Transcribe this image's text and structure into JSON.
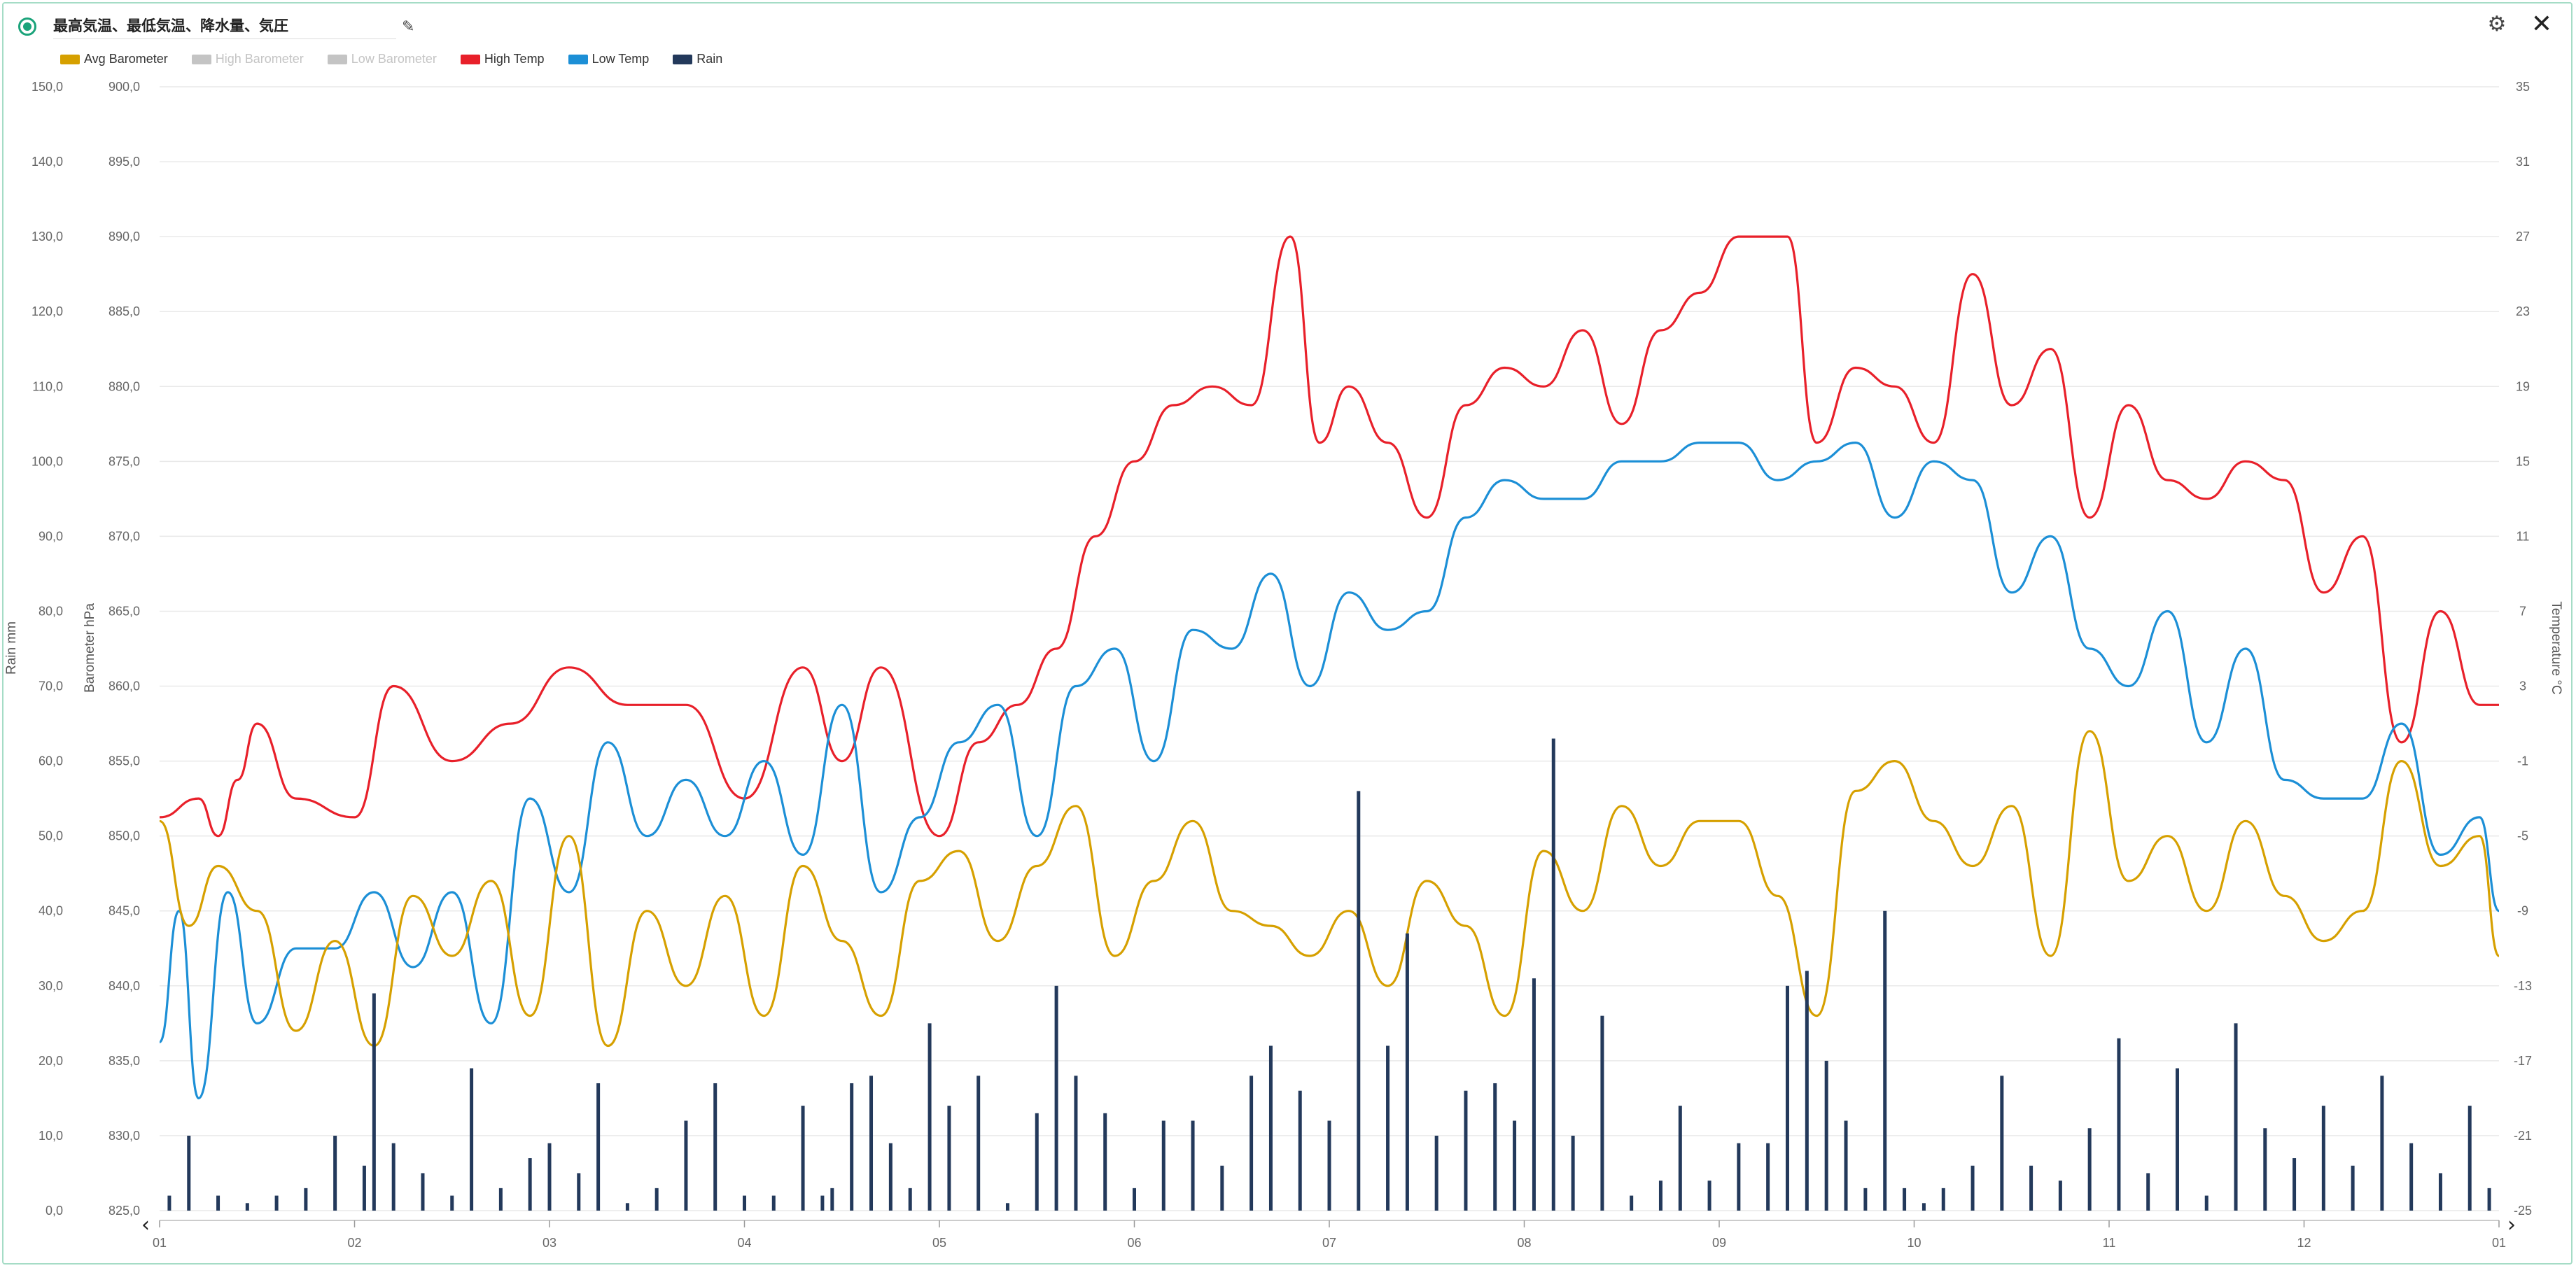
{
  "header": {
    "title": "最高気温、最低気温、降水量、気圧",
    "pencil_icon": "pencil-icon",
    "gear_icon": "gear-icon",
    "close_icon": "close-icon"
  },
  "chart_data": {
    "type": "line",
    "legend": [
      {
        "name": "Avg Barometer",
        "color": "#d6a000",
        "enabled": true
      },
      {
        "name": "High Barometer",
        "color": "#c4c4c4",
        "enabled": false
      },
      {
        "name": "Low Barometer",
        "color": "#c4c4c4",
        "enabled": false
      },
      {
        "name": "High Temp",
        "color": "#e8202a",
        "enabled": true
      },
      {
        "name": "Low Temp",
        "color": "#1c8fd6",
        "enabled": true
      },
      {
        "name": "Rain",
        "color": "#23395b",
        "enabled": true
      }
    ],
    "x_ticks": [
      "01",
      "02",
      "03",
      "04",
      "05",
      "06",
      "07",
      "08",
      "09",
      "10",
      "11",
      "12",
      "01"
    ],
    "axes": {
      "rain": {
        "label": "Rain mm",
        "min": 0,
        "max": 150,
        "ticks": [
          "0,0",
          "10,0",
          "20,0",
          "30,0",
          "40,0",
          "50,0",
          "60,0",
          "70,0",
          "80,0",
          "90,0",
          "100,0",
          "110,0",
          "120,0",
          "130,0",
          "140,0",
          "150,0"
        ]
      },
      "barometer": {
        "label": "Barometer hPa",
        "min": 825,
        "max": 900,
        "ticks": [
          "825,0",
          "830,0",
          "835,0",
          "840,0",
          "845,0",
          "850,0",
          "855,0",
          "860,0",
          "865,0",
          "870,0",
          "875,0",
          "880,0",
          "885,0",
          "890,0",
          "895,0",
          "900,0"
        ]
      },
      "temperature": {
        "label": "Temperature °C",
        "min": -25,
        "max": 35,
        "ticks": [
          "-25",
          "-21",
          "-17",
          "-13",
          "-9",
          "-5",
          "-1",
          "3",
          "7",
          "11",
          "15",
          "19",
          "23",
          "27",
          "31",
          "35"
        ]
      }
    },
    "series": [
      {
        "name": "High Temp",
        "axis": "temperature",
        "color": "#e8202a",
        "x": [
          0,
          0.2,
          0.3,
          0.4,
          0.5,
          0.7,
          1.0,
          1.2,
          1.5,
          1.8,
          2.1,
          2.4,
          2.7,
          3.0,
          3.3,
          3.5,
          3.7,
          4.0,
          4.2,
          4.4,
          4.6,
          4.8,
          5.0,
          5.2,
          5.4,
          5.6,
          5.8,
          5.95,
          6.1,
          6.3,
          6.5,
          6.7,
          6.9,
          7.1,
          7.3,
          7.5,
          7.7,
          7.9,
          8.1,
          8.2,
          8.35,
          8.5,
          8.7,
          8.9,
          9.1,
          9.3,
          9.5,
          9.7,
          9.9,
          10.1,
          10.3,
          10.5,
          10.7,
          10.9,
          11.1,
          11.3,
          11.5,
          11.7,
          11.9,
          12.0
        ],
        "y": [
          -4,
          -3,
          -5,
          -2,
          1,
          -3,
          -4,
          3,
          -1,
          1,
          4,
          2,
          2,
          -3,
          4,
          -1,
          4,
          -5,
          0,
          2,
          5,
          11,
          15,
          18,
          19,
          18,
          27,
          16,
          19,
          16,
          12,
          18,
          20,
          19,
          22,
          17,
          22,
          24,
          27,
          27,
          27,
          16,
          20,
          19,
          16,
          25,
          18,
          21,
          12,
          18,
          14,
          13,
          15,
          14,
          8,
          11,
          0,
          7,
          2,
          2
        ]
      },
      {
        "name": "Low Temp",
        "axis": "temperature",
        "color": "#1c8fd6",
        "x": [
          0,
          0.1,
          0.2,
          0.35,
          0.5,
          0.7,
          0.9,
          1.1,
          1.3,
          1.5,
          1.7,
          1.9,
          2.1,
          2.3,
          2.5,
          2.7,
          2.9,
          3.1,
          3.3,
          3.5,
          3.7,
          3.9,
          4.1,
          4.3,
          4.5,
          4.7,
          4.9,
          5.1,
          5.3,
          5.5,
          5.7,
          5.9,
          6.1,
          6.3,
          6.5,
          6.7,
          6.9,
          7.1,
          7.3,
          7.5,
          7.7,
          7.9,
          8.1,
          8.3,
          8.5,
          8.7,
          8.9,
          9.1,
          9.3,
          9.5,
          9.7,
          9.9,
          10.1,
          10.3,
          10.5,
          10.7,
          10.9,
          11.1,
          11.3,
          11.5,
          11.7,
          11.9,
          12.0
        ],
        "y": [
          -16,
          -9,
          -19,
          -8,
          -15,
          -11,
          -11,
          -8,
          -12,
          -8,
          -15,
          -3,
          -8,
          0,
          -5,
          -2,
          -5,
          -1,
          -6,
          2,
          -8,
          -4,
          0,
          2,
          -5,
          3,
          5,
          -1,
          6,
          5,
          9,
          3,
          8,
          6,
          7,
          12,
          14,
          13,
          13,
          15,
          15,
          16,
          16,
          14,
          15,
          16,
          12,
          15,
          14,
          8,
          11,
          5,
          3,
          7,
          0,
          5,
          -2,
          -3,
          -3,
          1,
          -6,
          -4,
          -9
        ]
      },
      {
        "name": "Avg Barometer",
        "axis": "barometer",
        "color": "#d6a000",
        "x": [
          0,
          0.15,
          0.3,
          0.5,
          0.7,
          0.9,
          1.1,
          1.3,
          1.5,
          1.7,
          1.9,
          2.1,
          2.3,
          2.5,
          2.7,
          2.9,
          3.1,
          3.3,
          3.5,
          3.7,
          3.9,
          4.1,
          4.3,
          4.5,
          4.7,
          4.9,
          5.1,
          5.3,
          5.5,
          5.7,
          5.9,
          6.1,
          6.3,
          6.5,
          6.7,
          6.9,
          7.1,
          7.3,
          7.5,
          7.7,
          7.9,
          8.1,
          8.3,
          8.5,
          8.7,
          8.9,
          9.1,
          9.3,
          9.5,
          9.7,
          9.9,
          10.1,
          10.3,
          10.5,
          10.7,
          10.9,
          11.1,
          11.3,
          11.5,
          11.7,
          11.9,
          12.0
        ],
        "y": [
          851,
          844,
          848,
          845,
          837,
          843,
          836,
          846,
          842,
          847,
          838,
          850,
          836,
          845,
          840,
          846,
          838,
          848,
          843,
          838,
          847,
          849,
          843,
          848,
          852,
          842,
          847,
          851,
          845,
          844,
          842,
          845,
          840,
          847,
          844,
          838,
          849,
          845,
          852,
          848,
          851,
          851,
          846,
          838,
          853,
          855,
          851,
          848,
          852,
          842,
          857,
          847,
          850,
          845,
          851,
          846,
          843,
          845,
          855,
          848,
          850,
          842
        ]
      },
      {
        "name": "Rain",
        "axis": "rain",
        "type": "bar",
        "color": "#23395b",
        "x": [
          0.05,
          0.15,
          0.3,
          0.45,
          0.6,
          0.75,
          0.9,
          1.05,
          1.1,
          1.2,
          1.35,
          1.5,
          1.6,
          1.75,
          1.9,
          2.0,
          2.15,
          2.25,
          2.4,
          2.55,
          2.7,
          2.85,
          3.0,
          3.15,
          3.3,
          3.4,
          3.45,
          3.55,
          3.65,
          3.75,
          3.85,
          3.95,
          4.05,
          4.2,
          4.35,
          4.5,
          4.6,
          4.7,
          4.85,
          5.0,
          5.15,
          5.3,
          5.45,
          5.6,
          5.7,
          5.85,
          6.0,
          6.15,
          6.3,
          6.4,
          6.55,
          6.7,
          6.85,
          6.95,
          7.05,
          7.15,
          7.25,
          7.4,
          7.55,
          7.7,
          7.8,
          7.95,
          8.1,
          8.25,
          8.35,
          8.45,
          8.55,
          8.65,
          8.75,
          8.85,
          8.95,
          9.05,
          9.15,
          9.3,
          9.45,
          9.6,
          9.75,
          9.9,
          10.05,
          10.2,
          10.35,
          10.5,
          10.65,
          10.8,
          10.95,
          11.1,
          11.25,
          11.4,
          11.55,
          11.7,
          11.85,
          11.95
        ],
        "y": [
          2,
          10,
          2,
          1,
          2,
          3,
          10,
          6,
          29,
          9,
          5,
          2,
          19,
          3,
          7,
          9,
          5,
          17,
          1,
          3,
          12,
          17,
          2,
          2,
          14,
          2,
          3,
          17,
          18,
          9,
          3,
          25,
          14,
          18,
          1,
          13,
          30,
          18,
          13,
          3,
          12,
          12,
          6,
          18,
          22,
          16,
          12,
          56,
          22,
          37,
          10,
          16,
          17,
          12,
          31,
          63,
          10,
          26,
          2,
          4,
          14,
          4,
          9,
          9,
          30,
          32,
          20,
          12,
          3,
          40,
          3,
          1,
          3,
          6,
          18,
          6,
          4,
          11,
          23,
          5,
          19,
          2,
          25,
          11,
          7,
          14,
          6,
          18,
          9,
          5,
          14,
          3
        ]
      }
    ]
  }
}
